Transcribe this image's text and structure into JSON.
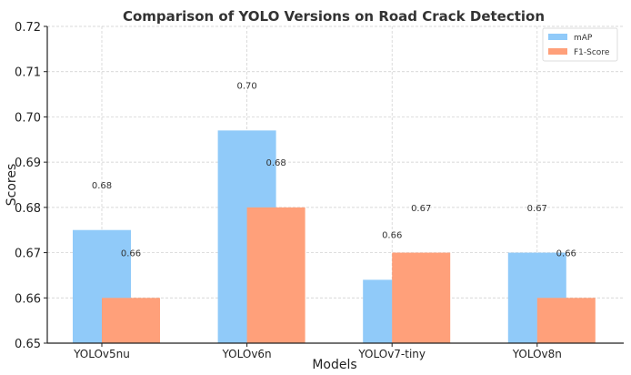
{
  "chart_data": {
    "type": "bar",
    "title": "Comparison of YOLO Versions on Road Crack Detection",
    "xlabel": "Models",
    "ylabel": "Scores",
    "ylim": [
      0.65,
      0.72
    ],
    "yticks": [
      "0.65",
      "0.66",
      "0.67",
      "0.68",
      "0.69",
      "0.70",
      "0.71",
      "0.72"
    ],
    "grid": true,
    "legend_position": "top-right",
    "categories": [
      "YOLOv5nu",
      "YOLOv6n",
      "YOLOv7-tiny",
      "YOLOv8n"
    ],
    "series": [
      {
        "name": "mAP",
        "color": "#90CAF9",
        "values": [
          0.675,
          0.697,
          0.664,
          0.67
        ],
        "labels": [
          "0.68",
          "0.70",
          "0.66",
          "0.67"
        ]
      },
      {
        "name": "F1-Score",
        "color": "#FFA07A",
        "values": [
          0.66,
          0.68,
          0.67,
          0.66
        ],
        "labels": [
          "0.66",
          "0.68",
          "0.67",
          "0.66"
        ]
      }
    ]
  }
}
